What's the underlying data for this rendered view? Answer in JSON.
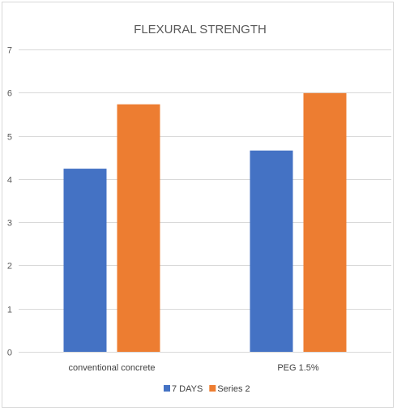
{
  "chart_data": {
    "type": "bar",
    "title": "FLEXURAL STRENGTH",
    "xlabel": "",
    "ylabel": "",
    "categories": [
      "conventional concrete",
      "PEG 1.5%"
    ],
    "series": [
      {
        "name": "7 DAYS",
        "values": [
          4.24,
          4.66
        ],
        "color": "#4472c4"
      },
      {
        "name": "Series 2",
        "values": [
          5.73,
          5.99
        ],
        "color": "#ed7d31"
      }
    ],
    "ylim": [
      0,
      7
    ],
    "yticks": [
      "0",
      "1",
      "2",
      "3",
      "4",
      "5",
      "6",
      "7"
    ],
    "grid": true,
    "legend_position": "bottom"
  }
}
